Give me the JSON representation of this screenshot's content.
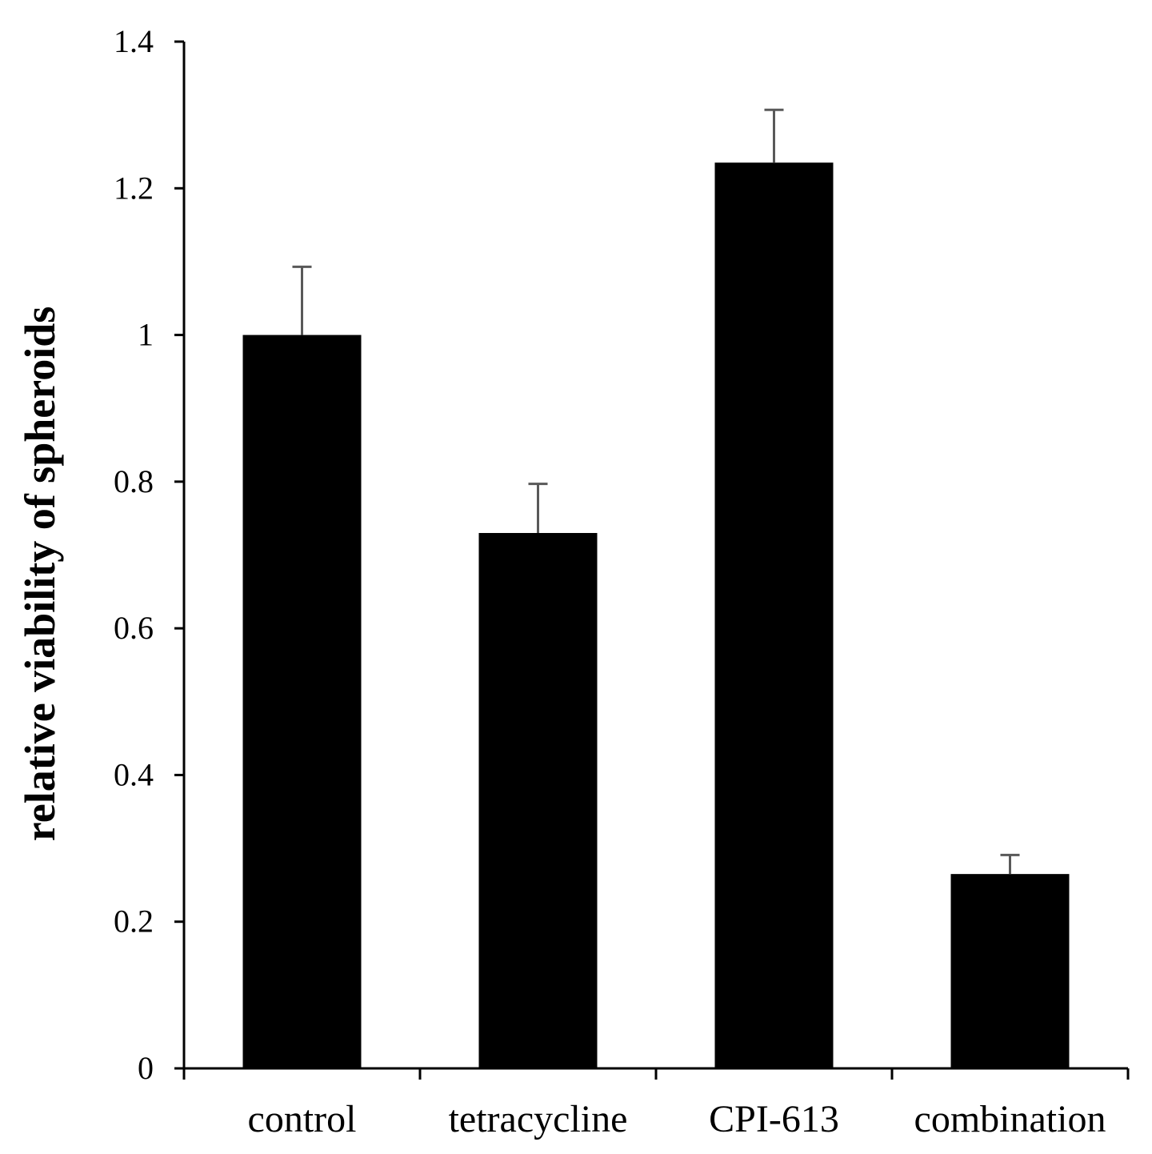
{
  "chart_data": {
    "type": "bar",
    "title": "",
    "xlabel": "",
    "ylabel": "relative viability of spheroids",
    "categories": [
      "control",
      "tetracycline",
      "CPI-613",
      "combination"
    ],
    "values": [
      1.0,
      0.73,
      1.235,
      0.265
    ],
    "errors": [
      0.093,
      0.067,
      0.072,
      0.026
    ],
    "ylim": [
      0,
      1.4
    ],
    "yticks": [
      0,
      0.2,
      0.4,
      0.6,
      0.8,
      1,
      1.2,
      1.4
    ],
    "ytick_labels": [
      "0",
      "0.2",
      "0.4",
      "0.6",
      "0.8",
      "1",
      "1.2",
      "1.4"
    ],
    "grid": false,
    "colors": {
      "bar": "#000000",
      "error_bar": "#595959",
      "axis": "#000000"
    }
  }
}
